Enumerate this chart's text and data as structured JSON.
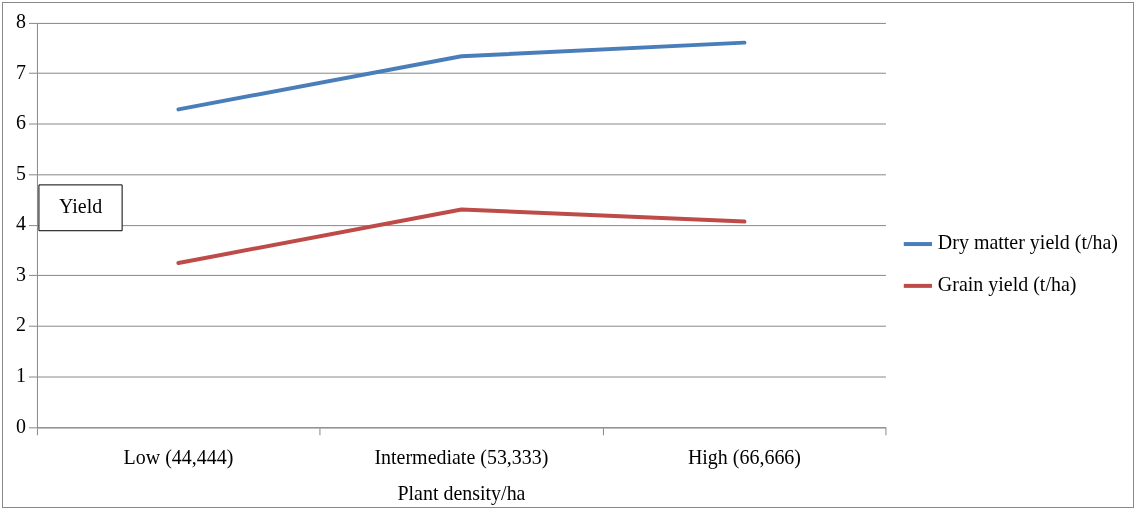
{
  "chart_data": {
    "type": "line",
    "xlabel": "Plant density/ha",
    "ylabel": "Yield",
    "categories": [
      "Low (44,444)",
      "Intermediate (53,333)",
      "High (66,666)"
    ],
    "series": [
      {
        "name": "Dry matter yield (t/ha)",
        "color": "#4a7ebb",
        "values": [
          6.29,
          7.34,
          7.61
        ]
      },
      {
        "name": "Grain yield (t/ha)",
        "color": "#be4b48",
        "values": [
          3.25,
          4.31,
          4.07
        ]
      }
    ],
    "ylim": [
      0,
      8
    ],
    "yticks": [
      0,
      1,
      2,
      3,
      4,
      5,
      6,
      7,
      8
    ],
    "grid": "y",
    "legend": "right",
    "marker": "none",
    "line_style": "solid"
  }
}
